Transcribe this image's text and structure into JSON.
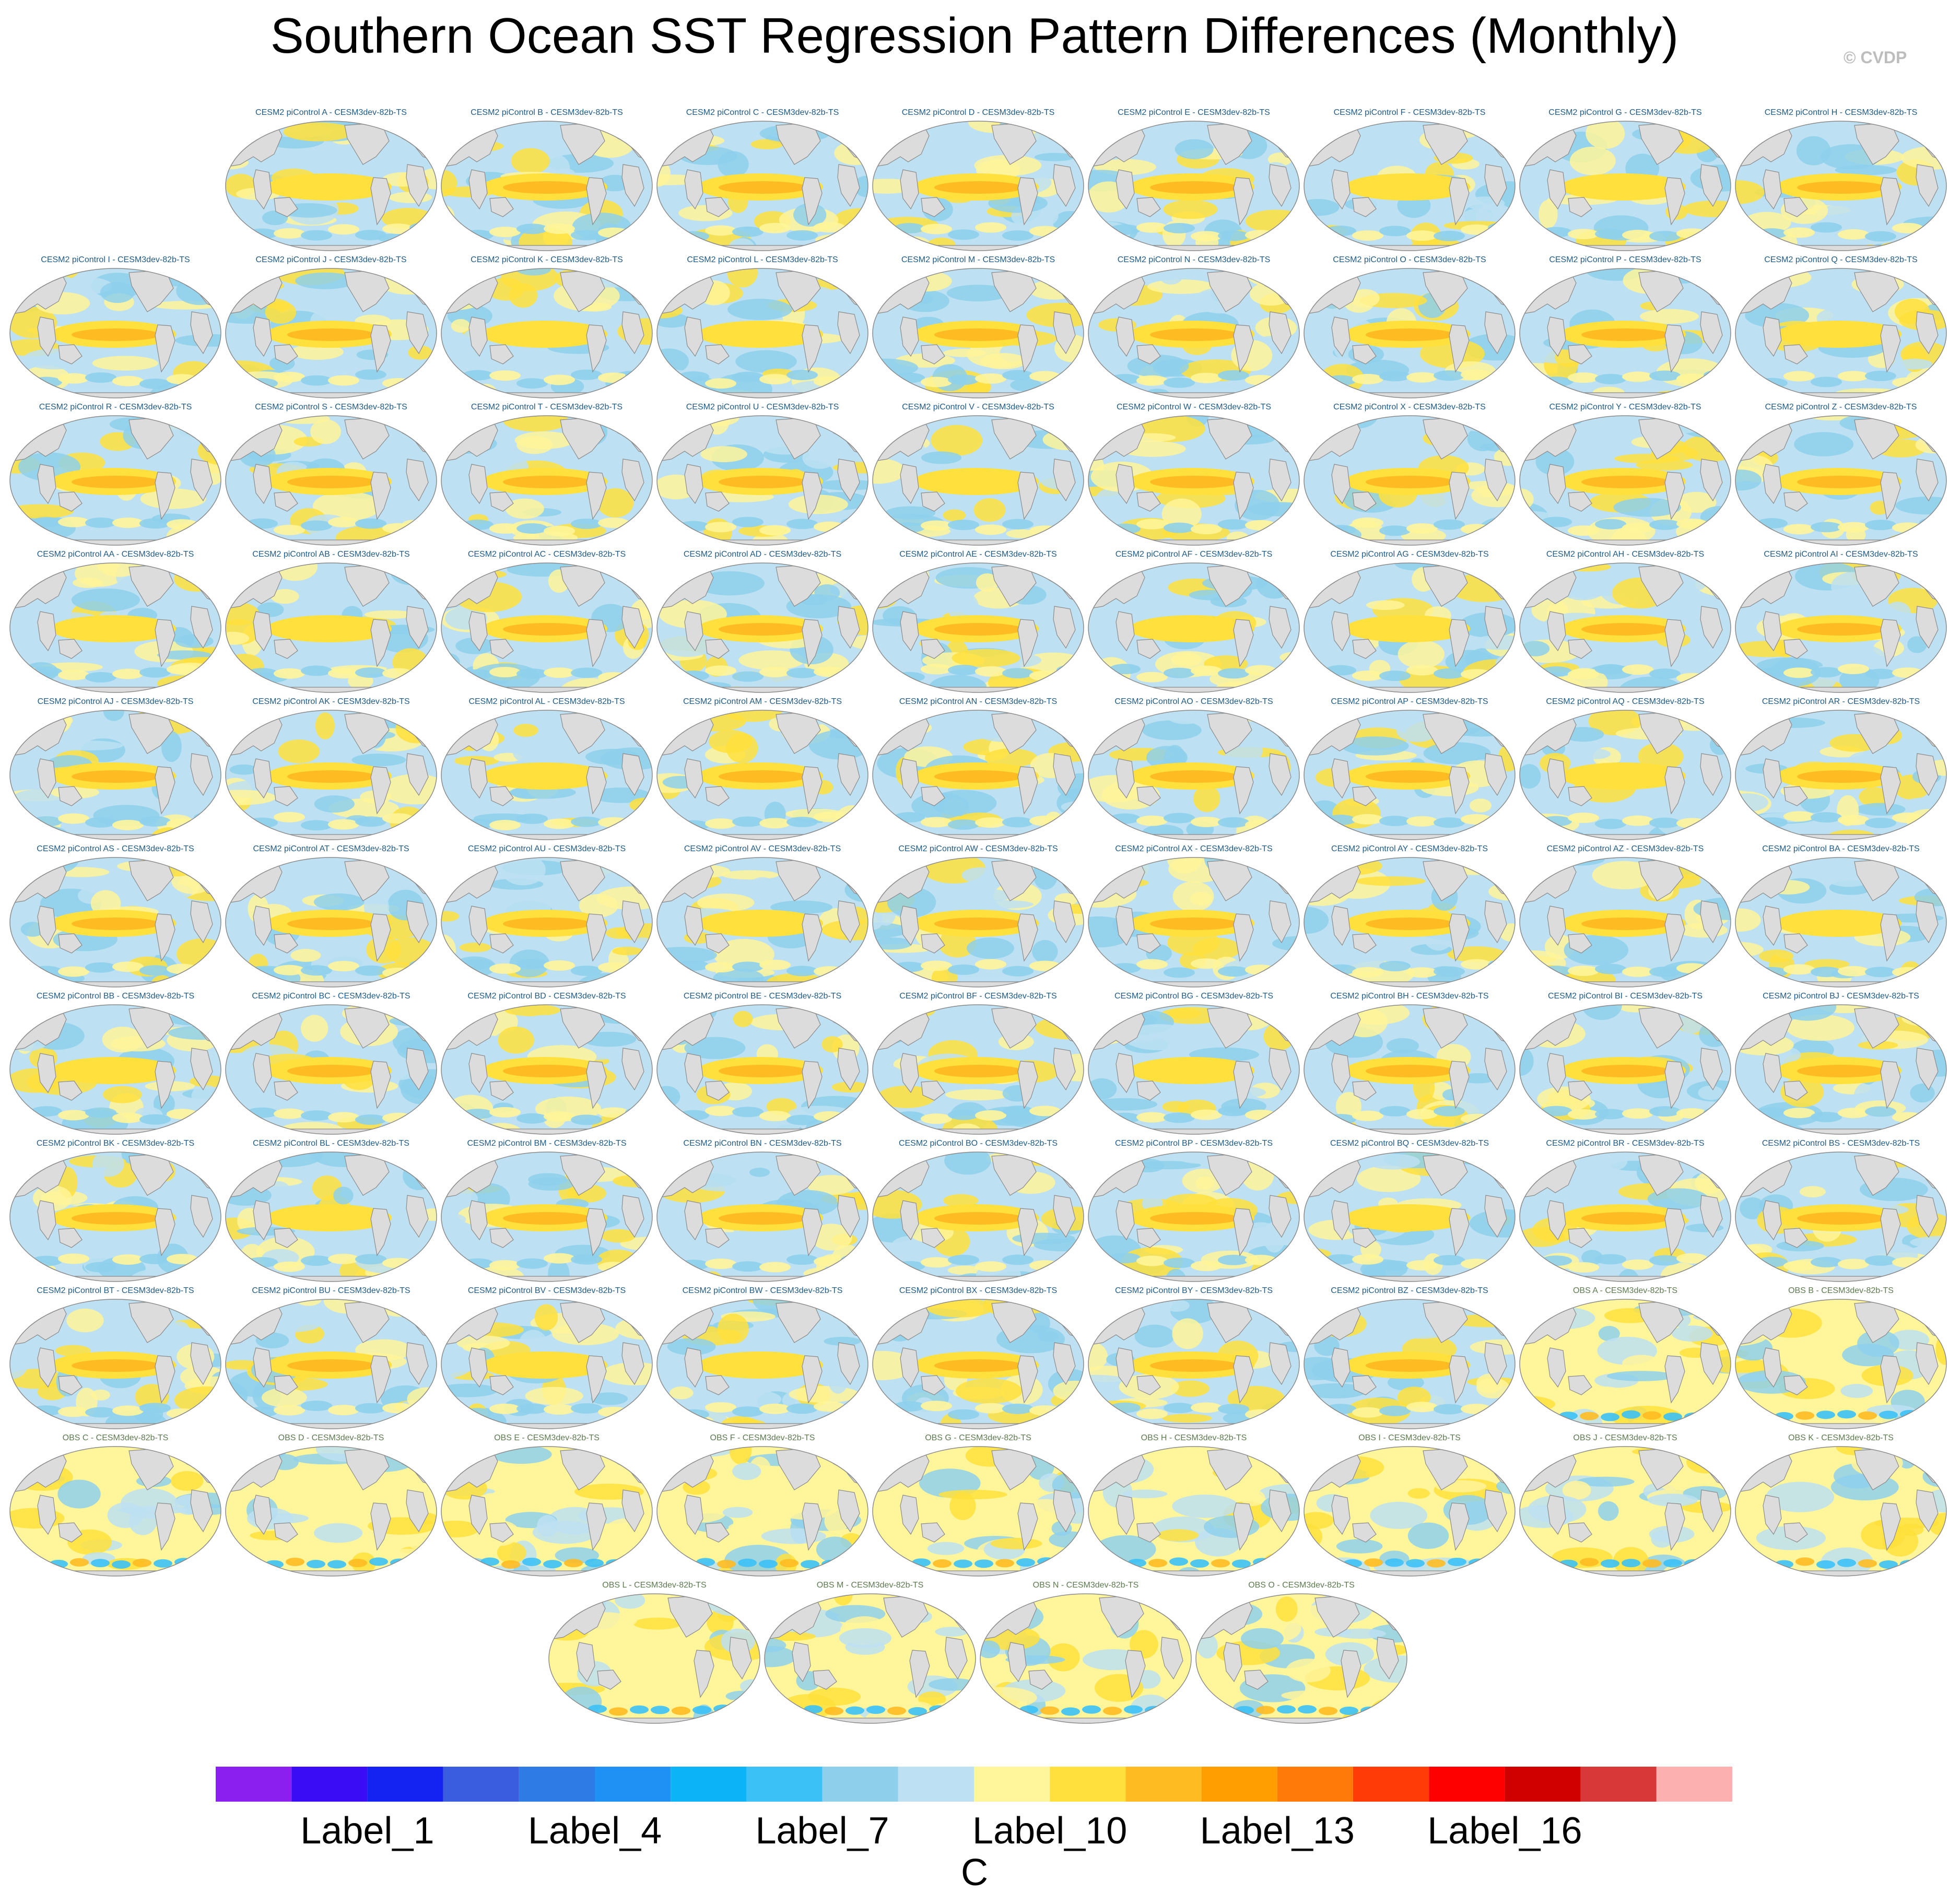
{
  "title": "Southern Ocean SST Regression Pattern Differences (Monthly)",
  "watermark": "© CVDP",
  "panels": [
    "CESM2 piControl A - CESM3dev-82b-TS",
    "CESM2 piControl B - CESM3dev-82b-TS",
    "CESM2 piControl C - CESM3dev-82b-TS",
    "CESM2 piControl D - CESM3dev-82b-TS",
    "CESM2 piControl E - CESM3dev-82b-TS",
    "CESM2 piControl F - CESM3dev-82b-TS",
    "CESM2 piControl G - CESM3dev-82b-TS",
    "CESM2 piControl H - CESM3dev-82b-TS",
    "CESM2 piControl I - CESM3dev-82b-TS",
    "CESM2 piControl J - CESM3dev-82b-TS",
    "CESM2 piControl K - CESM3dev-82b-TS",
    "CESM2 piControl L - CESM3dev-82b-TS",
    "CESM2 piControl M - CESM3dev-82b-TS",
    "CESM2 piControl N - CESM3dev-82b-TS",
    "CESM2 piControl O - CESM3dev-82b-TS",
    "CESM2 piControl P - CESM3dev-82b-TS",
    "CESM2 piControl Q - CESM3dev-82b-TS",
    "CESM2 piControl R - CESM3dev-82b-TS",
    "CESM2 piControl S - CESM3dev-82b-TS",
    "CESM2 piControl T - CESM3dev-82b-TS",
    "CESM2 piControl U - CESM3dev-82b-TS",
    "CESM2 piControl V - CESM3dev-82b-TS",
    "CESM2 piControl W - CESM3dev-82b-TS",
    "CESM2 piControl X - CESM3dev-82b-TS",
    "CESM2 piControl Y - CESM3dev-82b-TS",
    "CESM2 piControl Z - CESM3dev-82b-TS",
    "CESM2 piControl AA - CESM3dev-82b-TS",
    "CESM2 piControl AB - CESM3dev-82b-TS",
    "CESM2 piControl AC - CESM3dev-82b-TS",
    "CESM2 piControl AD - CESM3dev-82b-TS",
    "CESM2 piControl AE - CESM3dev-82b-TS",
    "CESM2 piControl AF - CESM3dev-82b-TS",
    "CESM2 piControl AG - CESM3dev-82b-TS",
    "CESM2 piControl AH - CESM3dev-82b-TS",
    "CESM2 piControl AI - CESM3dev-82b-TS",
    "CESM2 piControl AJ - CESM3dev-82b-TS",
    "CESM2 piControl AK - CESM3dev-82b-TS",
    "CESM2 piControl AL - CESM3dev-82b-TS",
    "CESM2 piControl AM - CESM3dev-82b-TS",
    "CESM2 piControl AN - CESM3dev-82b-TS",
    "CESM2 piControl AO - CESM3dev-82b-TS",
    "CESM2 piControl AP - CESM3dev-82b-TS",
    "CESM2 piControl AQ - CESM3dev-82b-TS",
    "CESM2 piControl AR - CESM3dev-82b-TS",
    "CESM2 piControl AS - CESM3dev-82b-TS",
    "CESM2 piControl AT - CESM3dev-82b-TS",
    "CESM2 piControl AU - CESM3dev-82b-TS",
    "CESM2 piControl AV - CESM3dev-82b-TS",
    "CESM2 piControl AW - CESM3dev-82b-TS",
    "CESM2 piControl AX - CESM3dev-82b-TS",
    "CESM2 piControl AY - CESM3dev-82b-TS",
    "CESM2 piControl AZ - CESM3dev-82b-TS",
    "CESM2 piControl BA - CESM3dev-82b-TS",
    "CESM2 piControl BB - CESM3dev-82b-TS",
    "CESM2 piControl BC - CESM3dev-82b-TS",
    "CESM2 piControl BD - CESM3dev-82b-TS",
    "CESM2 piControl BE - CESM3dev-82b-TS",
    "CESM2 piControl BF - CESM3dev-82b-TS",
    "CESM2 piControl BG - CESM3dev-82b-TS",
    "CESM2 piControl BH - CESM3dev-82b-TS",
    "CESM2 piControl BI - CESM3dev-82b-TS",
    "CESM2 piControl BJ - CESM3dev-82b-TS",
    "CESM2 piControl BK - CESM3dev-82b-TS",
    "CESM2 piControl BL - CESM3dev-82b-TS",
    "CESM2 piControl BM - CESM3dev-82b-TS",
    "CESM2 piControl BN - CESM3dev-82b-TS",
    "CESM2 piControl BO - CESM3dev-82b-TS",
    "CESM2 piControl BP - CESM3dev-82b-TS",
    "CESM2 piControl BQ - CESM3dev-82b-TS",
    "CESM2 piControl BR - CESM3dev-82b-TS",
    "CESM2 piControl BS - CESM3dev-82b-TS",
    "CESM2 piControl BT - CESM3dev-82b-TS",
    "CESM2 piControl BU - CESM3dev-82b-TS",
    "CESM2 piControl BV - CESM3dev-82b-TS",
    "CESM2 piControl BW - CESM3dev-82b-TS",
    "CESM2 piControl BX - CESM3dev-82b-TS",
    "CESM2 piControl BY - CESM3dev-82b-TS",
    "CESM2 piControl BZ - CESM3dev-82b-TS",
    "OBS A - CESM3dev-82b-TS",
    "OBS B - CESM3dev-82b-TS",
    "OBS C - CESM3dev-82b-TS",
    "OBS D - CESM3dev-82b-TS",
    "OBS E - CESM3dev-82b-TS",
    "OBS F - CESM3dev-82b-TS",
    "OBS G - CESM3dev-82b-TS",
    "OBS H - CESM3dev-82b-TS",
    "OBS I - CESM3dev-82b-TS",
    "OBS J - CESM3dev-82b-TS",
    "OBS K - CESM3dev-82b-TS",
    "OBS L - CESM3dev-82b-TS",
    "OBS M - CESM3dev-82b-TS",
    "OBS N - CESM3dev-82b-TS",
    "OBS O - CESM3dev-82b-TS"
  ],
  "colorbar": {
    "colors": [
      "#8a1ff0",
      "#3a0cf5",
      "#1523f2",
      "#3a5ddf",
      "#2f7be6",
      "#1f91f5",
      "#0cb3f6",
      "#3cc1f7",
      "#8ed0ec",
      "#bde1f2",
      "#fff59a",
      "#ffe03c",
      "#ffbb22",
      "#ff9e00",
      "#ff7a08",
      "#ff3c08",
      "#ff0000",
      "#d00000",
      "#d83838",
      "#fcb0b0"
    ],
    "labels": [
      "Label_1",
      "Label_4",
      "Label_7",
      "Label_10",
      "Label_13",
      "Label_16"
    ],
    "units": "C"
  },
  "palette": {
    "land": "#dcdcdc",
    "coast": "#8a8a8a",
    "ocean_light_yellow": "#fff59a",
    "ocean_yellow": "#ffe03c",
    "ocean_orange": "#ffbb22",
    "ocean_light_blue": "#bde1f2",
    "ocean_blue": "#8ed0ec",
    "ocean_deep_blue": "#3cc1f7"
  }
}
